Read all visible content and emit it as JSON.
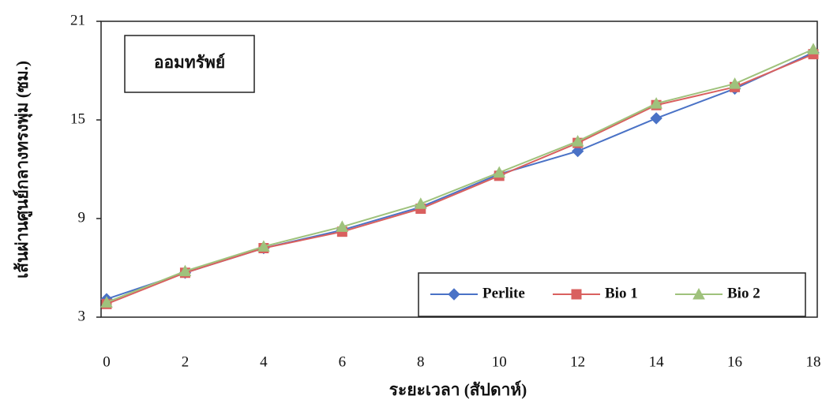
{
  "chart_data": {
    "type": "line",
    "annotation": "ออมทรัพย์",
    "x_label": "ระยะเวลา (สัปดาห์)",
    "y_label": "เส้นผ่านศูนย์กลางทรงพุ่ม (ซม.)",
    "x": [
      0,
      2,
      4,
      6,
      8,
      10,
      12,
      14,
      16,
      18
    ],
    "xlim": [
      0,
      18
    ],
    "xticks": [
      0,
      2,
      4,
      6,
      8,
      10,
      12,
      14,
      16,
      18
    ],
    "ylim": [
      3,
      21
    ],
    "yticks": [
      3,
      9,
      15,
      21
    ],
    "grid": false,
    "legend": "bottom-right",
    "series": [
      {
        "name": "Perlite",
        "color": "#4a72c6",
        "marker": "diamond",
        "values": [
          4.1,
          5.7,
          7.2,
          8.3,
          9.7,
          11.7,
          13.1,
          15.1,
          16.9,
          19.1
        ]
      },
      {
        "name": "Bio 1",
        "color": "#d9605f",
        "marker": "square",
        "values": [
          3.8,
          5.7,
          7.2,
          8.2,
          9.6,
          11.6,
          13.6,
          15.9,
          17.0,
          19.0
        ]
      },
      {
        "name": "Bio 2",
        "color": "#9fc27c",
        "marker": "triangle",
        "values": [
          3.9,
          5.8,
          7.3,
          8.5,
          9.9,
          11.8,
          13.7,
          16.0,
          17.2,
          19.3
        ]
      }
    ]
  }
}
